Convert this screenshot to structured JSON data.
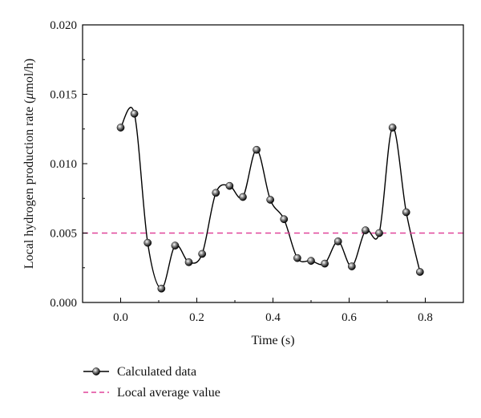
{
  "chart_data": {
    "type": "line",
    "xlabel": "Time (s)",
    "ylabel_prefix": "Local hydrogen production rate (",
    "ylabel_mu": "μ",
    "ylabel_suffix": "mol/h)",
    "xlim": [
      -0.1,
      0.9
    ],
    "ylim": [
      0.0,
      0.02
    ],
    "x_ticks": [
      0.0,
      0.2,
      0.4,
      0.6,
      0.8
    ],
    "x_tick_labels": [
      "0.0",
      "0.2",
      "0.4",
      "0.6",
      "0.8"
    ],
    "y_ticks": [
      0.0,
      0.005,
      0.01,
      0.015,
      0.02
    ],
    "y_tick_labels": [
      "0.000",
      "0.005",
      "0.010",
      "0.015",
      "0.020"
    ],
    "legend_position": "below plot, left",
    "series": [
      {
        "name": "Calculated data",
        "kind": "points-with-smooth-curve",
        "color": "#000000",
        "x": [
          0.0,
          0.036,
          0.071,
          0.107,
          0.143,
          0.179,
          0.214,
          0.25,
          0.286,
          0.321,
          0.357,
          0.393,
          0.429,
          0.464,
          0.5,
          0.536,
          0.571,
          0.607,
          0.643,
          0.679,
          0.714,
          0.75,
          0.786
        ],
        "y": [
          0.0126,
          0.0136,
          0.0043,
          0.001,
          0.0041,
          0.0029,
          0.0035,
          0.0079,
          0.0084,
          0.0076,
          0.011,
          0.0074,
          0.006,
          0.0032,
          0.003,
          0.0028,
          0.0044,
          0.0026,
          0.0052,
          0.005,
          0.0126,
          0.0065,
          0.0022
        ]
      },
      {
        "name": "Local average value",
        "kind": "dashed-line",
        "color": "#e0449a",
        "y": 0.005
      }
    ]
  }
}
